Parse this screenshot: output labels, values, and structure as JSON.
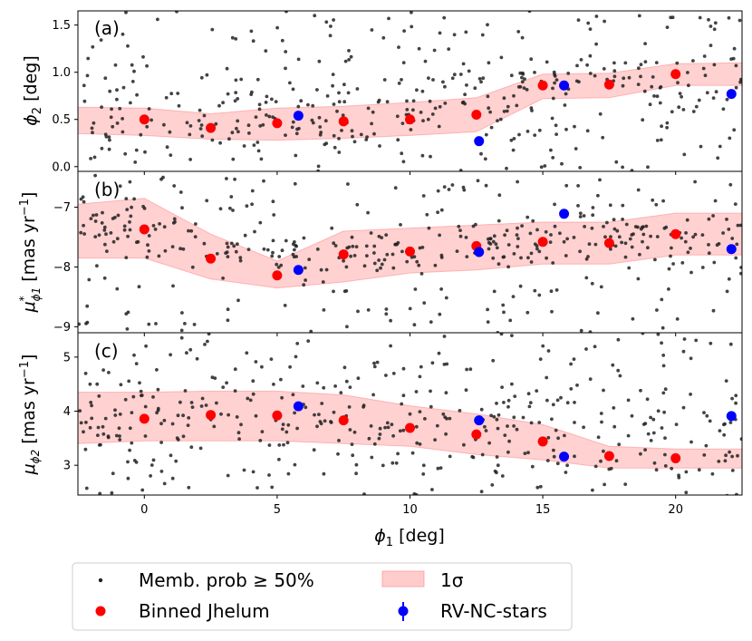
{
  "chart_data": {
    "type": "scatter",
    "xlabel": "ϕ1 [deg]",
    "xlim": [
      -2.5,
      22.5
    ],
    "xticks": [
      0,
      5,
      10,
      15,
      20
    ],
    "colors": {
      "members": "#222222",
      "binned": "#ff0000",
      "rv": "#0000ff",
      "band_fill": "#ff9999",
      "band_edge": "#ff8080"
    },
    "legend": {
      "members": "Memb. prob ≥ 50%",
      "binned": "Binned Jhelum",
      "band": "1σ",
      "rv": "RV-NC-stars"
    },
    "panels": [
      {
        "id": "a",
        "tag": "(a)",
        "ylabel_main": "ϕ",
        "ylabel_sub": "2",
        "ylabel_rest": " [deg]",
        "ylim": [
          -0.05,
          1.65
        ],
        "yticks": [
          0.0,
          0.5,
          1.0,
          1.5
        ],
        "ytick_labels": [
          "0.0",
          "0.5",
          "1.0",
          "1.5"
        ],
        "binned": {
          "x": [
            0,
            2.5,
            5,
            7.5,
            10,
            12.5,
            15,
            17.5,
            20
          ],
          "y": [
            0.5,
            0.41,
            0.46,
            0.48,
            0.5,
            0.55,
            0.86,
            0.87,
            0.98
          ]
        },
        "rv": {
          "x": [
            5.8,
            12.6,
            15.8,
            22.1
          ],
          "y": [
            0.54,
            0.27,
            0.86,
            0.77
          ],
          "err": [
            0.03,
            0.03,
            0.03,
            0.03
          ]
        },
        "band": {
          "x": [
            -2.5,
            0,
            2.5,
            5,
            7.5,
            10,
            12.5,
            15,
            17.5,
            20,
            22.5
          ],
          "lower": [
            0.35,
            0.33,
            0.29,
            0.28,
            0.3,
            0.33,
            0.37,
            0.72,
            0.73,
            0.86,
            0.86
          ],
          "upper": [
            0.63,
            0.62,
            0.56,
            0.62,
            0.64,
            0.68,
            0.73,
            0.98,
            0.99,
            1.09,
            1.1
          ]
        },
        "members": {
          "center_y": [
            0.5,
            0.5,
            0.9,
            1.0
          ],
          "spread": 0.85,
          "count": 430,
          "seed": 11
        }
      },
      {
        "id": "b",
        "tag": "(b)",
        "ylabel_main": "μ",
        "ylabel_sub": "ϕ1",
        "ylabel_sup": "*",
        "ylabel_rest": " [mas yr",
        "ylabel_exp": "−1",
        "ylabel_end": "]",
        "ylim": [
          -9.1,
          -6.4
        ],
        "yticks": [
          -9,
          -8,
          -7
        ],
        "ytick_labels": [
          "−9",
          "−8",
          "−7"
        ],
        "binned": {
          "x": [
            0,
            2.5,
            5,
            7.5,
            10,
            12.5,
            15,
            17.5,
            20
          ],
          "y": [
            -7.37,
            -7.86,
            -8.14,
            -7.79,
            -7.74,
            -7.65,
            -7.58,
            -7.6,
            -7.45
          ]
        },
        "rv": {
          "x": [
            5.8,
            12.6,
            15.8,
            22.1
          ],
          "y": [
            -8.05,
            -7.75,
            -7.11,
            -7.7
          ],
          "err": [
            0.04,
            0.04,
            0.04,
            0.04
          ]
        },
        "band": {
          "x": [
            -2.5,
            0,
            2.5,
            5,
            7.5,
            10,
            12.5,
            15,
            17.5,
            20,
            22.5
          ],
          "lower": [
            -7.85,
            -7.85,
            -8.2,
            -8.35,
            -8.25,
            -8.1,
            -8.05,
            -7.95,
            -7.95,
            -7.8,
            -7.8
          ],
          "upper": [
            -6.95,
            -6.85,
            -7.45,
            -7.9,
            -7.4,
            -7.35,
            -7.3,
            -7.25,
            -7.25,
            -7.1,
            -7.1
          ]
        },
        "members": {
          "center_y": [
            -7.4,
            -7.8,
            -7.6,
            -7.5
          ],
          "spread": 1.4,
          "count": 430,
          "seed": 23
        }
      },
      {
        "id": "c",
        "tag": "(c)",
        "ylabel_main": "μ",
        "ylabel_sub": "ϕ2",
        "ylabel_rest": " [mas yr",
        "ylabel_exp": "−1",
        "ylabel_end": "]",
        "ylim": [
          2.45,
          5.45
        ],
        "yticks": [
          3,
          4,
          5
        ],
        "ytick_labels": [
          "3",
          "4",
          "5"
        ],
        "binned": {
          "x": [
            0,
            2.5,
            5,
            7.5,
            10,
            12.5,
            15,
            17.5,
            20
          ],
          "y": [
            3.86,
            3.93,
            3.92,
            3.83,
            3.69,
            3.57,
            3.44,
            3.17,
            3.13
          ]
        },
        "rv": {
          "x": [
            5.8,
            12.6,
            15.8,
            22.1
          ],
          "y": [
            4.09,
            3.83,
            3.16,
            3.91
          ],
          "err": [
            0.05,
            0.05,
            0.05,
            0.05
          ]
        },
        "band": {
          "x": [
            -2.5,
            0,
            2.5,
            5,
            7.5,
            10,
            12.5,
            15,
            17.5,
            20,
            22.5
          ],
          "lower": [
            3.4,
            3.45,
            3.45,
            3.45,
            3.4,
            3.35,
            3.2,
            3.1,
            2.95,
            2.95,
            2.95
          ],
          "upper": [
            4.35,
            4.35,
            4.37,
            4.37,
            4.3,
            4.1,
            3.95,
            3.75,
            3.35,
            3.3,
            3.3
          ]
        },
        "members": {
          "center_y": [
            3.9,
            3.9,
            3.7,
            3.4
          ],
          "spread": 1.6,
          "count": 430,
          "seed": 37
        }
      }
    ]
  }
}
